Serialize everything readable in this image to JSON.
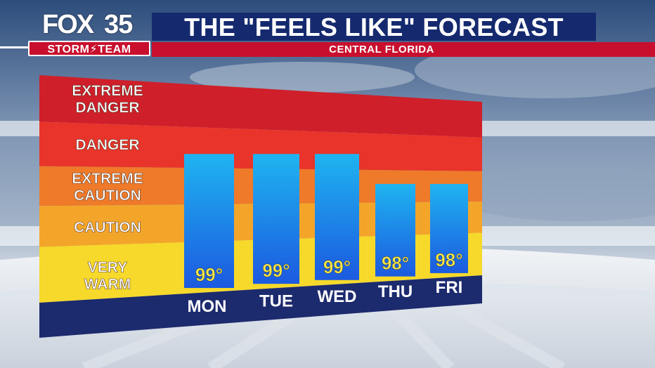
{
  "brand": {
    "fox": "FOX",
    "number": "35",
    "team": "STORM⚡TEAM"
  },
  "header": {
    "title": "THE \"FEELS LIKE\" FORECAST",
    "subtitle": "CENTRAL FLORIDA"
  },
  "colors": {
    "title_bar": "#152a6e",
    "sub_bar": "#c8102e",
    "bar_top": "#1fb4f0",
    "bar_bottom": "#1c5ae0",
    "value_text": "#f6e84a",
    "day_text": "#ffffff",
    "base": "#1c2a6e"
  },
  "chart_data": {
    "type": "bar",
    "title": "THE \"FEELS LIKE\" FORECAST",
    "categories": [
      "MON",
      "TUE",
      "WED",
      "THU",
      "FRI"
    ],
    "values": [
      99,
      99,
      99,
      98,
      98
    ],
    "value_labels": [
      "99°",
      "99°",
      "99°",
      "98°",
      "98°"
    ],
    "bands": [
      {
        "label_lines": [
          "EXTREME",
          "DANGER"
        ],
        "color": "#cf1f2a"
      },
      {
        "label_lines": [
          "DANGER"
        ],
        "color": "#e8342a"
      },
      {
        "label_lines": [
          "EXTREME",
          "CAUTION"
        ],
        "color": "#ee7a2a"
      },
      {
        "label_lines": [
          "CAUTION"
        ],
        "color": "#f3a52a"
      },
      {
        "label_lines": [
          "VERY",
          "WARM"
        ],
        "color": "#f6d92a"
      }
    ],
    "legend": "none",
    "grid": false
  }
}
